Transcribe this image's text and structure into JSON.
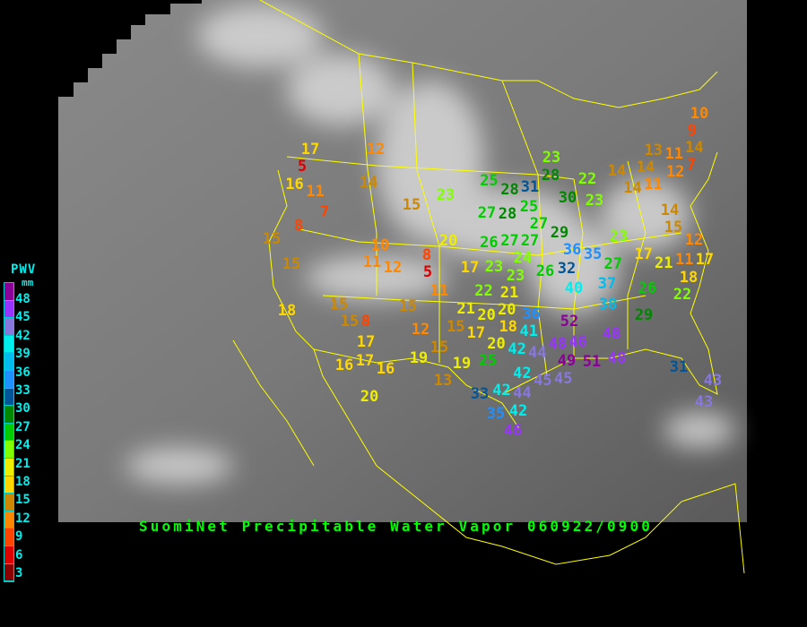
{
  "title": "SuomiNet Precipitable Water Vapor 060922/0900",
  "legend": {
    "title": "PWV",
    "unit": "mm",
    "ticks": [
      "48",
      "45",
      "42",
      "39",
      "36",
      "33",
      "30",
      "27",
      "24",
      "21",
      "18",
      "15",
      "12",
      "9",
      "6",
      "3"
    ],
    "colors": [
      "#8a0099",
      "#9933ff",
      "#8877dd",
      "#00eeee",
      "#00bbee",
      "#1e90ff",
      "#005599",
      "#008800",
      "#00cc00",
      "#80ff00",
      "#eeee00",
      "#ffd700",
      "#cc8800",
      "#ff8800",
      "#ff4400",
      "#dd0000",
      "#8b0000"
    ]
  },
  "map": {
    "border_color": "#ffff00",
    "imagery": "infrared satellite"
  },
  "stations": [
    "17",
    "5",
    "16",
    "11",
    "7",
    "8",
    "15",
    "15",
    "18",
    "12",
    "14",
    "15",
    "23",
    "20",
    "10",
    "11",
    "12",
    "8",
    "5",
    "11",
    "17",
    "15",
    "15",
    "8",
    "17",
    "17",
    "16",
    "16",
    "20",
    "15",
    "12",
    "15",
    "19",
    "19",
    "13",
    "25",
    "28",
    "31",
    "23",
    "28",
    "22",
    "30",
    "23",
    "27",
    "28",
    "25",
    "26",
    "27",
    "27",
    "27",
    "29",
    "23",
    "24",
    "26",
    "32",
    "36",
    "35",
    "27",
    "23",
    "14",
    "14",
    "11",
    "14",
    "10",
    "9",
    "14",
    "13",
    "11",
    "7",
    "12",
    "14",
    "15",
    "12",
    "17",
    "21",
    "11",
    "17",
    "18",
    "26",
    "22",
    "40",
    "37",
    "38",
    "29",
    "22",
    "21",
    "23",
    "21",
    "20",
    "20",
    "15",
    "17",
    "18",
    "36",
    "41",
    "20",
    "25",
    "42",
    "44",
    "42",
    "45",
    "52",
    "46",
    "48",
    "49",
    "45",
    "51",
    "48",
    "48",
    "33",
    "42",
    "44",
    "35",
    "42",
    "46",
    "31",
    "43",
    "43"
  ]
}
